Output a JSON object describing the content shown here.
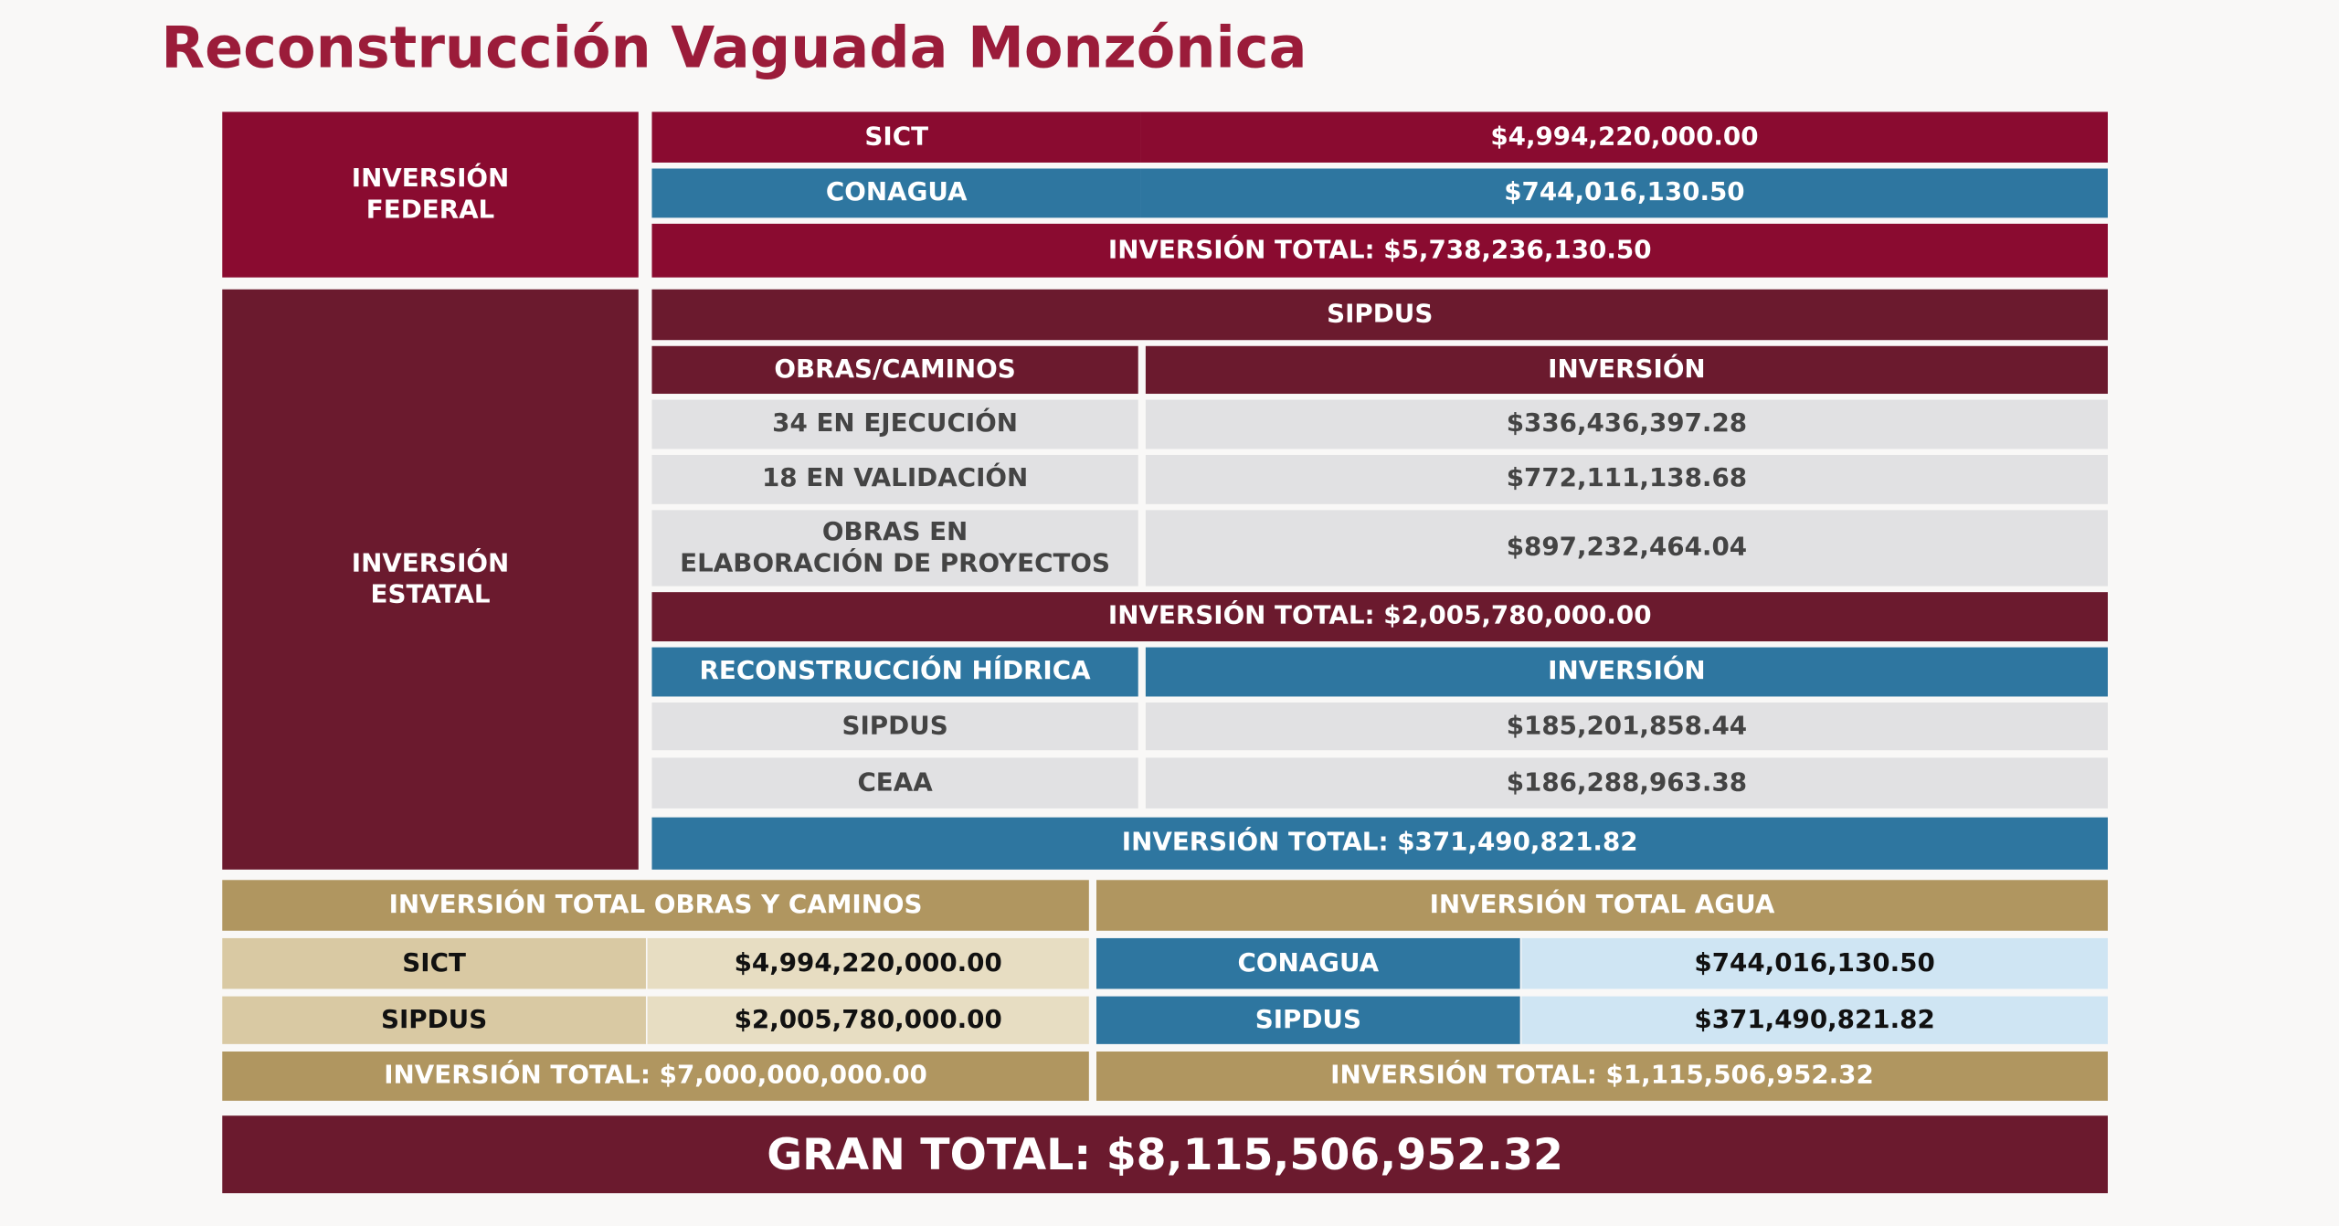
{
  "title": "Reconstrucción Vaguada Monzónica",
  "federal": {
    "label": "INVERSIÓN FEDERAL",
    "rows": [
      [
        "SICT",
        "$4,994,220,000.00"
      ],
      [
        "CONAGUA",
        "$744,016,130.50"
      ]
    ],
    "total": "INVERSIÓN TOTAL: $5,738,236,130.50"
  },
  "estatal": {
    "label": "INVERSIÓN ESTATAL",
    "sipdus": {
      "title": "SIPDUS",
      "header": [
        "OBRAS/CAMINOS",
        "INVERSIÓN"
      ],
      "rows": [
        [
          "34 EN EJECUCIÓN",
          "$336,436,397.28"
        ],
        [
          "18 EN VALIDACIÓN",
          "$772,111,138.68"
        ],
        [
          [
            "OBRAS EN",
            "ELABORACIÓN DE PROYECTOS"
          ],
          "$897,232,464.04"
        ]
      ],
      "total": "INVERSIÓN TOTAL: $2,005,780,000.00"
    },
    "hidrica": {
      "header": [
        "RECONSTRUCCIÓN HÍDRICA",
        "INVERSIÓN"
      ],
      "rows": [
        [
          "SIPDUS",
          "$185,201,858.44"
        ],
        [
          "CEAA",
          "$186,288,963.38"
        ]
      ],
      "total": "INVERSIÓN TOTAL: $371,490,821.82"
    }
  },
  "obras_caminos": {
    "title": "INVERSIÓN TOTAL OBRAS Y CAMINOS",
    "rows": [
      [
        "SICT",
        "$4,994,220,000.00"
      ],
      [
        "SIPDUS",
        "$2,005,780,000.00"
      ]
    ],
    "total": "INVERSIÓN TOTAL: $7,000,000,000.00"
  },
  "agua": {
    "title": "INVERSIÓN TOTAL AGUA",
    "rows": [
      [
        "CONAGUA",
        "$744,016,130.50"
      ],
      [
        "SIPDUS",
        "$371,490,821.82"
      ]
    ],
    "total": "INVERSIÓN TOTAL: $1,115,506,952.32"
  },
  "gran_total": "GRAN TOTAL: $8,115,506,952.32"
}
